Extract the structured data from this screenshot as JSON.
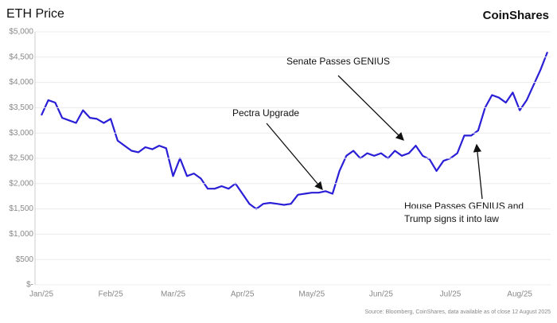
{
  "chart_data": {
    "type": "line",
    "title": "ETH Price",
    "brand": "CoinShares",
    "source": "Source: Bloomberg, CoinShares, data available as of close 12 August 2025",
    "categories": [
      "Jan/25",
      null,
      null,
      null,
      null,
      null,
      null,
      null,
      null,
      null,
      "Feb/25",
      null,
      null,
      null,
      null,
      null,
      null,
      null,
      null,
      "Mar/25",
      null,
      null,
      null,
      null,
      null,
      null,
      null,
      null,
      null,
      "Apr/25",
      null,
      null,
      null,
      null,
      null,
      null,
      null,
      null,
      null,
      "May/25",
      null,
      null,
      null,
      null,
      null,
      null,
      null,
      null,
      null,
      "Jun/25",
      null,
      null,
      null,
      null,
      null,
      null,
      null,
      null,
      null,
      "Jul/25",
      null,
      null,
      null,
      null,
      null,
      null,
      null,
      null,
      null,
      "Aug/25",
      null,
      null,
      null,
      null
    ],
    "series": [
      {
        "name": "ETH Price",
        "color": "#2a1fd6",
        "values": [
          3350,
          3650,
          3600,
          3300,
          3250,
          3200,
          3450,
          3300,
          3280,
          3200,
          3280,
          2850,
          2750,
          2650,
          2620,
          2720,
          2680,
          2750,
          2700,
          2150,
          2500,
          2150,
          2200,
          2100,
          1900,
          1900,
          1950,
          1900,
          2000,
          1800,
          1600,
          1500,
          1600,
          1620,
          1600,
          1580,
          1600,
          1780,
          1800,
          1820,
          1820,
          1850,
          1800,
          2250,
          2550,
          2650,
          2500,
          2600,
          2550,
          2600,
          2500,
          2650,
          2550,
          2600,
          2750,
          2550,
          2480,
          2250,
          2450,
          2500,
          2600,
          2950,
          2950,
          3050,
          3500,
          3750,
          3700,
          3600,
          3800,
          3450,
          3650,
          3950,
          4250,
          4600
        ]
      }
    ],
    "ylim": [
      0,
      5000
    ],
    "yticks": [
      {
        "value": 0,
        "label": "$-"
      },
      {
        "value": 500,
        "label": "$500"
      },
      {
        "value": 1000,
        "label": "$1,000"
      },
      {
        "value": 1500,
        "label": "$1,500"
      },
      {
        "value": 2000,
        "label": "$2,000"
      },
      {
        "value": 2500,
        "label": "$2,500"
      },
      {
        "value": 3000,
        "label": "$3,000"
      },
      {
        "value": 3500,
        "label": "$3,500"
      },
      {
        "value": 4000,
        "label": "$4,000"
      },
      {
        "value": 4500,
        "label": "$4,500"
      },
      {
        "value": 5000,
        "label": "$5,000"
      }
    ],
    "grid": true,
    "annotations": [
      {
        "lines": [
          "Pectra Upgrade"
        ]
      },
      {
        "lines": [
          "Senate Passes GENIUS"
        ]
      },
      {
        "lines": [
          "House Passes GENIUS and",
          "Trump signs it into law"
        ]
      }
    ]
  }
}
